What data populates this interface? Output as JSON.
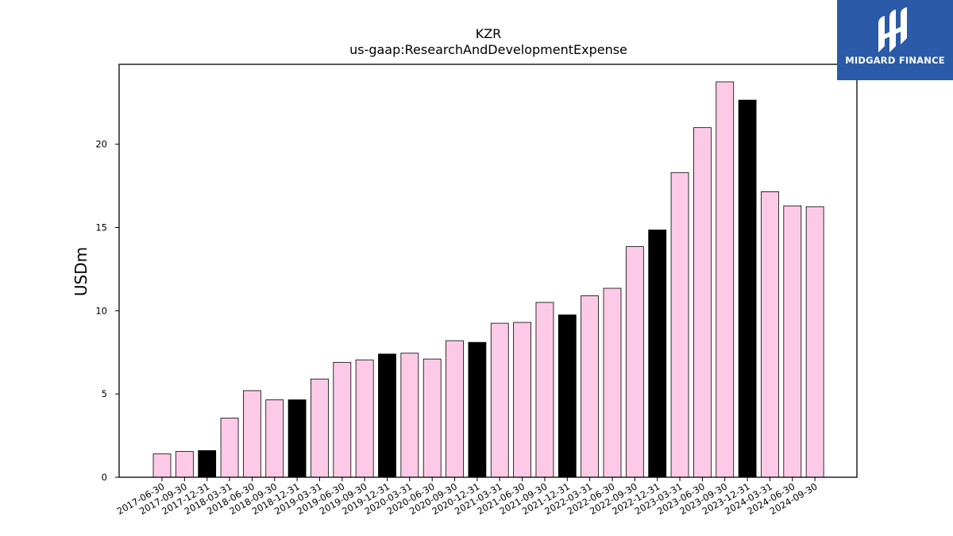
{
  "brand": {
    "name": "MIDGARD FINANCE",
    "bg_color": "#2b5aa8",
    "icon": "midgard-logo-icon"
  },
  "chart_data": {
    "type": "bar",
    "title": "KZR",
    "subtitle": "us-gaap:ResearchAndDevelopmentExpense",
    "xlabel": "",
    "ylabel": "USDm",
    "ylim": [
      0,
      24.8
    ],
    "yticks": [
      0,
      5,
      10,
      15,
      20
    ],
    "grid": false,
    "colors": {
      "quarter": "#fccae6",
      "year_end": "#000000",
      "edge": "#000000"
    },
    "categories": [
      "2017-06-30",
      "2017-09-30",
      "2017-12-31",
      "2018-03-31",
      "2018-06-30",
      "2018-09-30",
      "2018-12-31",
      "2019-03-31",
      "2019-06-30",
      "2019-09-30",
      "2019-12-31",
      "2020-03-31",
      "2020-06-30",
      "2020-09-30",
      "2020-12-31",
      "2021-03-31",
      "2021-06-30",
      "2021-09-30",
      "2021-12-31",
      "2022-03-31",
      "2022-06-30",
      "2022-09-30",
      "2022-12-31",
      "2023-03-31",
      "2023-06-30",
      "2023-09-30",
      "2023-12-31",
      "2024-03-31",
      "2024-06-30",
      "2024-09-30"
    ],
    "values": [
      1.4,
      1.55,
      1.6,
      3.55,
      5.2,
      4.65,
      4.65,
      5.9,
      6.9,
      7.05,
      7.4,
      7.45,
      7.1,
      8.2,
      8.1,
      9.25,
      9.3,
      10.5,
      9.75,
      10.9,
      11.35,
      13.85,
      14.85,
      18.3,
      21.0,
      23.75,
      22.65,
      17.15,
      16.3,
      16.25
    ],
    "year_end": [
      false,
      false,
      true,
      false,
      false,
      false,
      true,
      false,
      false,
      false,
      true,
      false,
      false,
      false,
      true,
      false,
      false,
      false,
      true,
      false,
      false,
      false,
      true,
      false,
      false,
      false,
      true,
      false,
      false,
      false
    ]
  }
}
